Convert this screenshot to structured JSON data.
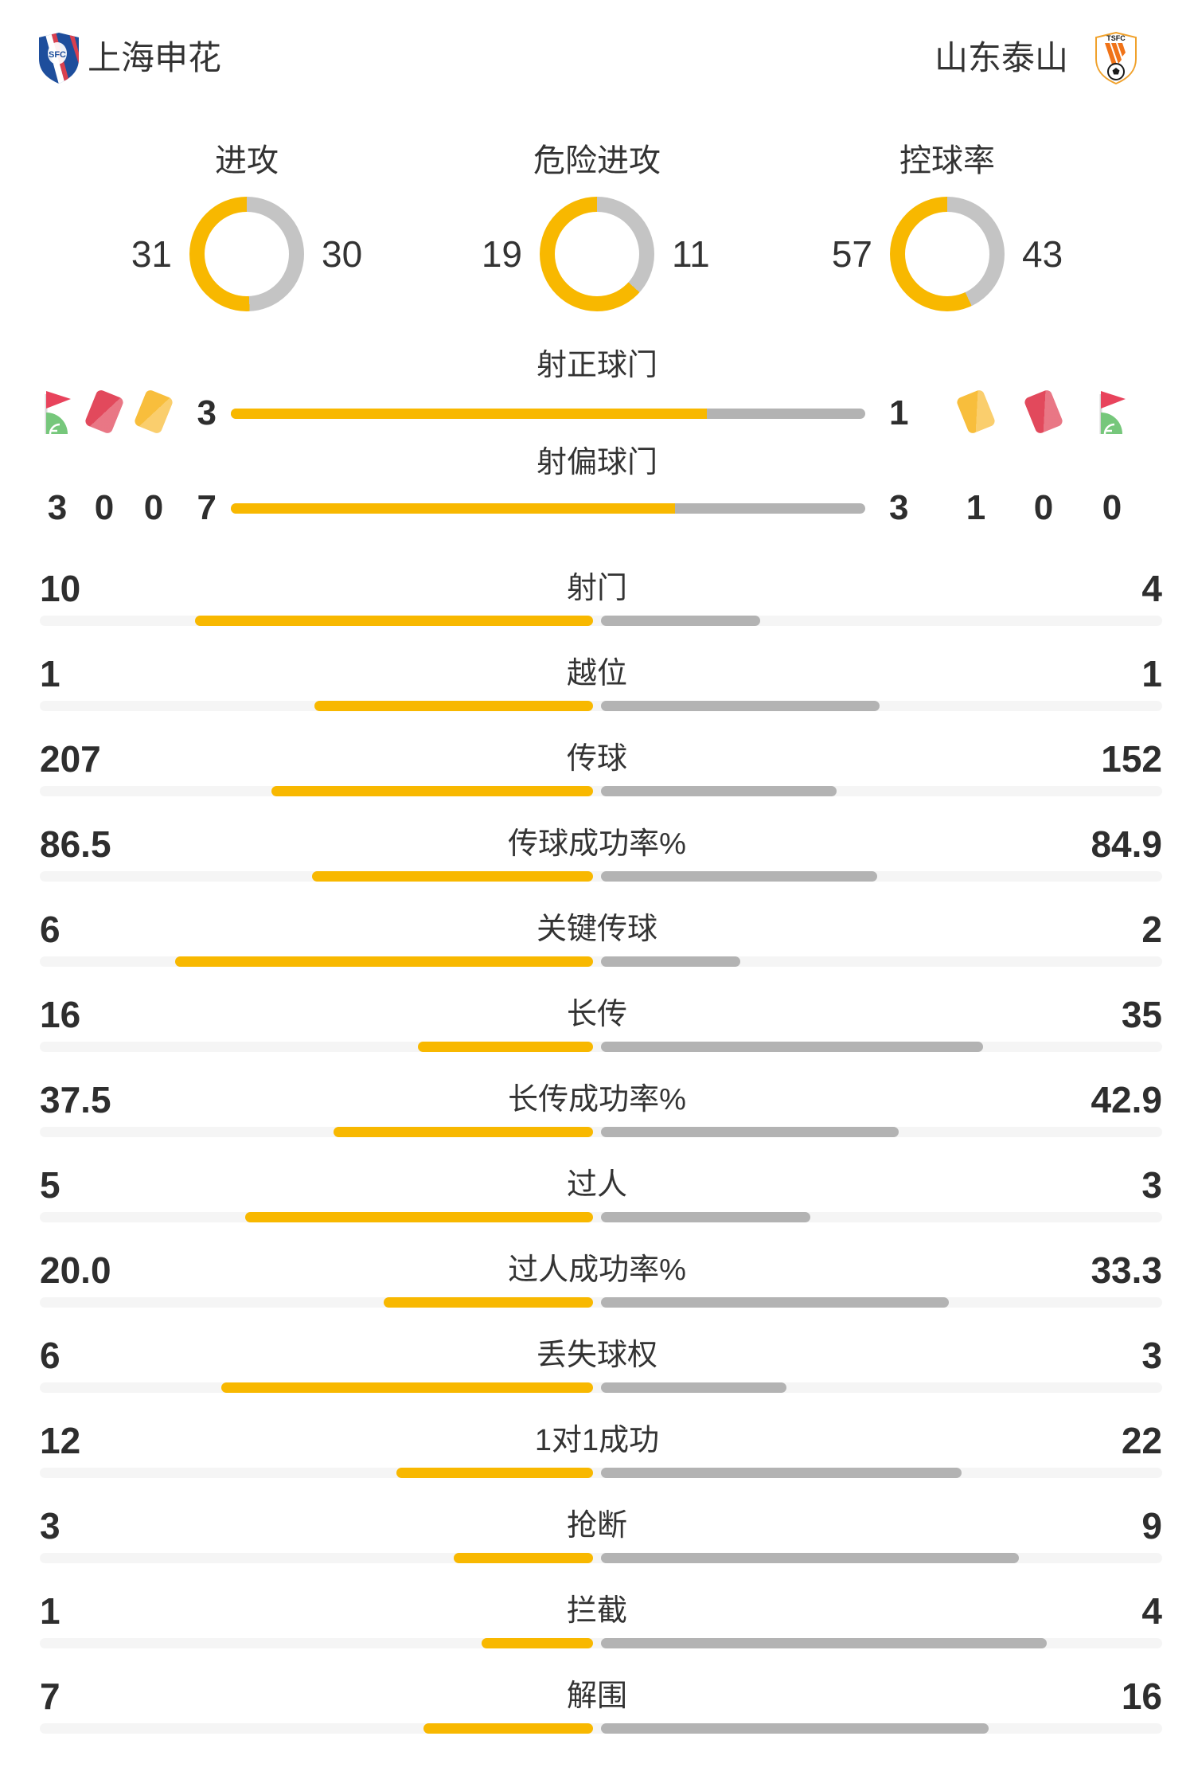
{
  "teams": {
    "home": {
      "name": "上海申花",
      "crest_label": "SFC"
    },
    "away": {
      "name": "山东泰山",
      "crest_label": "TSFC"
    }
  },
  "colors": {
    "home": "#F8B800",
    "away": "#B3B3B3",
    "donut_away": "#C4C4C4",
    "track": "#F5F5F5",
    "red_card": "#E2495C",
    "yellow_card": "#F8BE3C",
    "flag_red": "#E8435C",
    "flag_green": "#76C77B"
  },
  "donuts": [
    {
      "label": "进攻",
      "home": "31",
      "away": "30"
    },
    {
      "label": "危险进攻",
      "home": "19",
      "away": "11"
    },
    {
      "label": "控球率",
      "home": "57",
      "away": "43"
    }
  ],
  "shot_bars": [
    {
      "label": "射正球门",
      "home": "3",
      "away": "1"
    },
    {
      "label": "射偏球门",
      "home": "7",
      "away": "3"
    }
  ],
  "discipline": {
    "home": [
      {
        "icon": "corner-flag",
        "value": "3"
      },
      {
        "icon": "red-card",
        "value": "0"
      },
      {
        "icon": "yellow-card",
        "value": "0"
      }
    ],
    "away": [
      {
        "icon": "yellow-card",
        "value": "1"
      },
      {
        "icon": "red-card",
        "value": "0"
      },
      {
        "icon": "corner-flag",
        "value": "0"
      }
    ]
  },
  "stats": [
    {
      "label": "射门",
      "home": "10",
      "away": "4"
    },
    {
      "label": "越位",
      "home": "1",
      "away": "1"
    },
    {
      "label": "传球",
      "home": "207",
      "away": "152"
    },
    {
      "label": "传球成功率%",
      "home": "86.5",
      "away": "84.9"
    },
    {
      "label": "关键传球",
      "home": "6",
      "away": "2"
    },
    {
      "label": "长传",
      "home": "16",
      "away": "35"
    },
    {
      "label": "长传成功率%",
      "home": "37.5",
      "away": "42.9"
    },
    {
      "label": "过人",
      "home": "5",
      "away": "3"
    },
    {
      "label": "过人成功率%",
      "home": "20.0",
      "away": "33.3"
    },
    {
      "label": "丢失球权",
      "home": "6",
      "away": "3"
    },
    {
      "label": "1对1成功",
      "home": "12",
      "away": "22"
    },
    {
      "label": "抢断",
      "home": "3",
      "away": "9"
    },
    {
      "label": "拦截",
      "home": "1",
      "away": "4"
    },
    {
      "label": "解围",
      "home": "7",
      "away": "16"
    }
  ],
  "chart_data": {
    "type": "bar",
    "legend": [
      "上海申花",
      "山东泰山"
    ],
    "legend_position": "top",
    "grid": false,
    "categories": [
      "进攻",
      "危险进攻",
      "控球率",
      "射正球门",
      "射偏球门",
      "角球",
      "红牌",
      "黄牌",
      "射门",
      "越位",
      "传球",
      "传球成功率%",
      "关键传球",
      "长传",
      "长传成功率%",
      "过人",
      "过人成功率%",
      "丢失球权",
      "1对1成功",
      "抢断",
      "拦截",
      "解围"
    ],
    "series": [
      {
        "name": "上海申花",
        "values": [
          31,
          19,
          57,
          3,
          7,
          3,
          0,
          0,
          10,
          1,
          207,
          86.5,
          6,
          16,
          37.5,
          5,
          20.0,
          6,
          12,
          3,
          1,
          7
        ]
      },
      {
        "name": "山东泰山",
        "values": [
          30,
          11,
          43,
          1,
          3,
          0,
          0,
          1,
          4,
          1,
          152,
          84.9,
          2,
          35,
          42.9,
          3,
          33.3,
          3,
          22,
          9,
          4,
          16
        ]
      }
    ],
    "donut_charts": [
      {
        "title": "进攻",
        "values": [
          31,
          30
        ]
      },
      {
        "title": "危险进攻",
        "values": [
          19,
          11
        ]
      },
      {
        "title": "控球率",
        "values": [
          57,
          43
        ]
      }
    ]
  }
}
